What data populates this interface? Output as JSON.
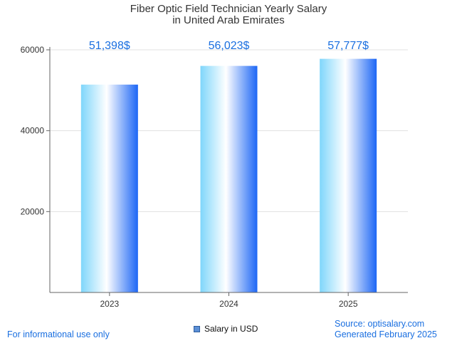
{
  "colors": {
    "accent": "#1a6fe0",
    "bar_light": "#ffffff",
    "bar_mid": "#7fd6fb",
    "bar_dark": "#1c66f5",
    "grid": "#e0e0e0",
    "axis": "#666666"
  },
  "chart_data": {
    "type": "bar",
    "title": [
      "Fiber Optic Field Technician Yearly Salary",
      "in United Arab Emirates"
    ],
    "categories": [
      "2023",
      "2024",
      "2025"
    ],
    "series": [
      {
        "name": "Salary in USD",
        "values": [
          51398,
          56023,
          57777
        ]
      }
    ],
    "data_labels": [
      "51,398$",
      "56,023$",
      "57,777$"
    ],
    "y_ticks": [
      "20000",
      "40000",
      "60000"
    ],
    "ylim": [
      0,
      60000
    ],
    "grid": true,
    "legend": {
      "position": "bottom-center",
      "label": "Salary in USD"
    }
  },
  "footer": {
    "left": "For informational use only",
    "source": "Source: optisalary.com",
    "generated": "Generated February 2025"
  }
}
